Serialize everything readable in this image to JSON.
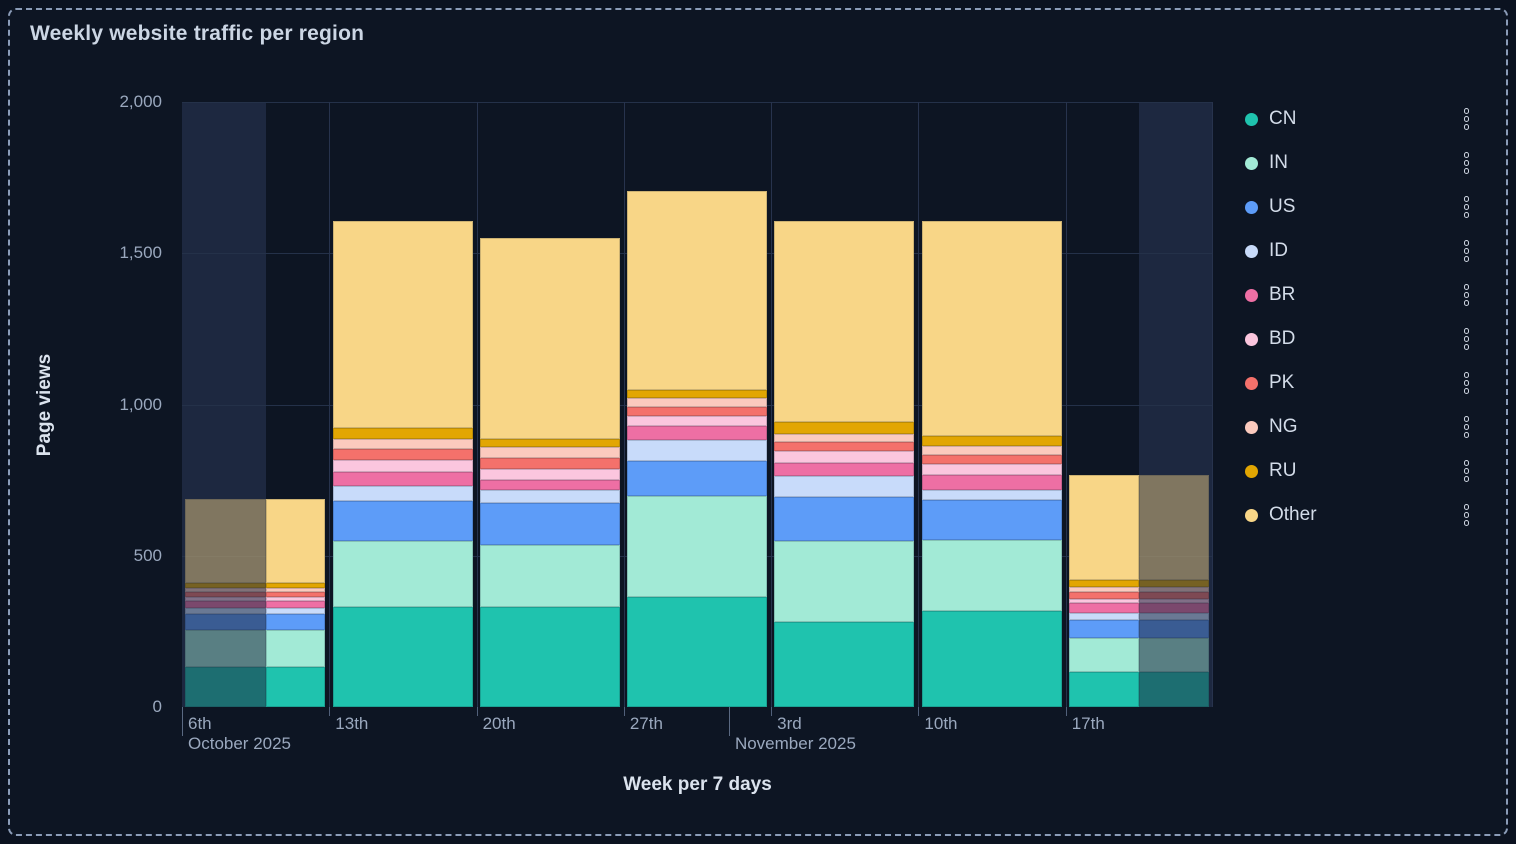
{
  "panel": {
    "title": "Weekly website traffic per region"
  },
  "colors": {
    "panel_background": "#0d1523",
    "out_of_range_background": "#1d2840",
    "dashed_border": "#8b9cb8",
    "gridline": "#243149",
    "tick_label": "#9aa8be",
    "axis_title": "#dbe3ee",
    "legend_label": "#d3dce9"
  },
  "chart_data": {
    "type": "bar",
    "stacked": true,
    "title": "Weekly website traffic per region",
    "xlabel": "Week per 7 days",
    "ylabel": "Page views",
    "ylim": [
      0,
      2000
    ],
    "yticks": [
      0,
      500,
      1000,
      1500,
      2000
    ],
    "ytick_labels": [
      "0",
      "500",
      "1,000",
      "1,500",
      "2,000"
    ],
    "categories": [
      "6th",
      "13th",
      "20th",
      "27th",
      "3rd",
      "10th",
      "17th"
    ],
    "month_labels": [
      {
        "label": "October 2025"
      },
      {
        "label": "November 2025"
      }
    ],
    "series": [
      {
        "name": "CN",
        "color": "#1fc3ae",
        "values": [
          132,
          332,
          332,
          365,
          282,
          319,
          116
        ]
      },
      {
        "name": "IN",
        "color": "#a2ead6",
        "values": [
          123,
          216,
          203,
          333,
          266,
          232,
          113
        ]
      },
      {
        "name": "US",
        "color": "#5d9cf8",
        "values": [
          54,
          133,
          140,
          116,
          146,
          132,
          59
        ]
      },
      {
        "name": "ID",
        "color": "#c8dbfa",
        "values": [
          18,
          50,
          44,
          69,
          70,
          33,
          24
        ]
      },
      {
        "name": "BR",
        "color": "#ee6fa4",
        "values": [
          25,
          47,
          33,
          45,
          44,
          51,
          33
        ]
      },
      {
        "name": "BD",
        "color": "#fbc6de",
        "values": [
          12,
          37,
          34,
          35,
          39,
          36,
          13
        ]
      },
      {
        "name": "PK",
        "color": "#f4716b",
        "values": [
          15,
          39,
          37,
          30,
          30,
          30,
          22
        ]
      },
      {
        "name": "NG",
        "color": "#fbcabe",
        "values": [
          14,
          31,
          35,
          29,
          26,
          31,
          16
        ]
      },
      {
        "name": "RU",
        "color": "#e2a602",
        "values": [
          18,
          36,
          27,
          27,
          40,
          33,
          25
        ]
      },
      {
        "name": "Other",
        "color": "#f8d687",
        "values": [
          276,
          687,
          667,
          656,
          663,
          709,
          345
        ]
      }
    ],
    "bar_totals": [
      687,
      1608,
      1552,
      1705,
      1606,
      1606,
      766
    ],
    "out_of_range_shading": {
      "first_bar_dimmed_left_fraction": 0.58,
      "last_bar_dimmed_right_fraction": 0.5,
      "dimmed_opacity": 0.45
    },
    "legend_position": "right",
    "grid": true
  },
  "legend": {
    "items": [
      {
        "label": "CN"
      },
      {
        "label": "IN"
      },
      {
        "label": "US"
      },
      {
        "label": "ID"
      },
      {
        "label": "BR"
      },
      {
        "label": "BD"
      },
      {
        "label": "PK"
      },
      {
        "label": "NG"
      },
      {
        "label": "RU"
      },
      {
        "label": "Other"
      }
    ],
    "menu_icon": "kebab-vertical-dots"
  }
}
